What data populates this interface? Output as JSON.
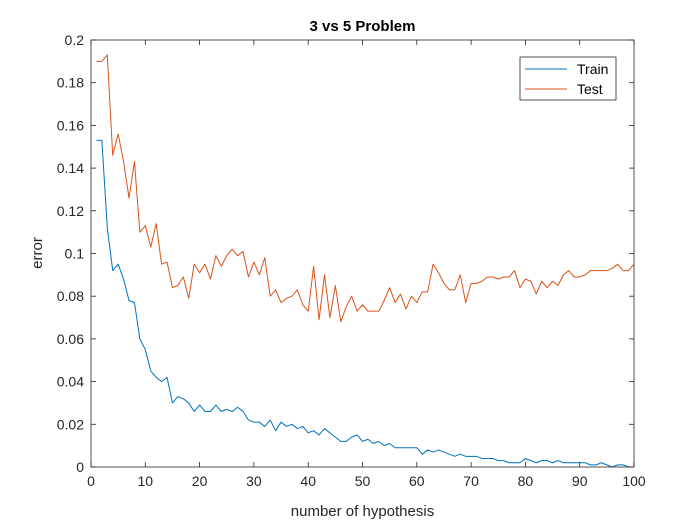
{
  "chart_data": {
    "type": "line",
    "title": "3 vs 5 Problem",
    "xlabel": "number of hypothesis",
    "ylabel": "error",
    "xlim": [
      0,
      100
    ],
    "ylim": [
      0,
      0.2
    ],
    "xticks": [
      0,
      10,
      20,
      30,
      40,
      50,
      60,
      70,
      80,
      90,
      100
    ],
    "yticks": [
      0,
      0.02,
      0.04,
      0.06,
      0.08,
      0.1,
      0.12,
      0.14,
      0.16,
      0.18,
      0.2
    ],
    "xtick_labels": [
      "0",
      "10",
      "20",
      "30",
      "40",
      "50",
      "60",
      "70",
      "80",
      "90",
      "100"
    ],
    "ytick_labels": [
      "0",
      "0.02",
      "0.04",
      "0.06",
      "0.08",
      "0.1",
      "0.12",
      "0.14",
      "0.16",
      "0.18",
      "0.2"
    ],
    "grid": false,
    "legend_position": "top-right",
    "x": [
      1,
      2,
      3,
      4,
      5,
      6,
      7,
      8,
      9,
      10,
      11,
      12,
      13,
      14,
      15,
      16,
      17,
      18,
      19,
      20,
      21,
      22,
      23,
      24,
      25,
      26,
      27,
      28,
      29,
      30,
      31,
      32,
      33,
      34,
      35,
      36,
      37,
      38,
      39,
      40,
      41,
      42,
      43,
      44,
      45,
      46,
      47,
      48,
      49,
      50,
      51,
      52,
      53,
      54,
      55,
      56,
      57,
      58,
      59,
      60,
      61,
      62,
      63,
      64,
      65,
      66,
      67,
      68,
      69,
      70,
      71,
      72,
      73,
      74,
      75,
      76,
      77,
      78,
      79,
      80,
      81,
      82,
      83,
      84,
      85,
      86,
      87,
      88,
      89,
      90,
      91,
      92,
      93,
      94,
      95,
      96,
      97,
      98,
      99,
      100
    ],
    "series": [
      {
        "name": "Train",
        "color": "#0072BD",
        "values": [
          0.153,
          0.153,
          0.112,
          0.092,
          0.095,
          0.088,
          0.078,
          0.077,
          0.06,
          0.055,
          0.045,
          0.042,
          0.04,
          0.042,
          0.03,
          0.033,
          0.032,
          0.03,
          0.026,
          0.029,
          0.026,
          0.026,
          0.029,
          0.026,
          0.027,
          0.026,
          0.028,
          0.026,
          0.022,
          0.021,
          0.021,
          0.019,
          0.022,
          0.017,
          0.021,
          0.019,
          0.02,
          0.018,
          0.019,
          0.016,
          0.017,
          0.015,
          0.018,
          0.016,
          0.014,
          0.012,
          0.012,
          0.014,
          0.015,
          0.012,
          0.013,
          0.011,
          0.012,
          0.01,
          0.011,
          0.009,
          0.009,
          0.009,
          0.009,
          0.009,
          0.006,
          0.008,
          0.007,
          0.008,
          0.007,
          0.006,
          0.005,
          0.006,
          0.005,
          0.005,
          0.005,
          0.004,
          0.004,
          0.004,
          0.003,
          0.003,
          0.002,
          0.002,
          0.002,
          0.004,
          0.003,
          0.002,
          0.003,
          0.003,
          0.002,
          0.003,
          0.002,
          0.002,
          0.002,
          0.002,
          0.002,
          0.001,
          0.001,
          0.002,
          0.001,
          0.0,
          0.001,
          0.001,
          0.0,
          0.0
        ]
      },
      {
        "name": "Test",
        "color": "#D95319",
        "values": [
          0.19,
          0.19,
          0.193,
          0.146,
          0.156,
          0.143,
          0.126,
          0.143,
          0.11,
          0.113,
          0.103,
          0.114,
          0.095,
          0.096,
          0.084,
          0.085,
          0.089,
          0.079,
          0.095,
          0.091,
          0.095,
          0.088,
          0.099,
          0.094,
          0.099,
          0.102,
          0.099,
          0.101,
          0.089,
          0.096,
          0.09,
          0.098,
          0.08,
          0.083,
          0.077,
          0.079,
          0.08,
          0.083,
          0.076,
          0.073,
          0.094,
          0.069,
          0.09,
          0.07,
          0.085,
          0.068,
          0.075,
          0.08,
          0.073,
          0.076,
          0.073,
          0.073,
          0.073,
          0.078,
          0.084,
          0.077,
          0.081,
          0.074,
          0.08,
          0.077,
          0.082,
          0.082,
          0.095,
          0.091,
          0.086,
          0.083,
          0.083,
          0.09,
          0.077,
          0.086,
          0.086,
          0.087,
          0.089,
          0.089,
          0.088,
          0.089,
          0.089,
          0.092,
          0.084,
          0.088,
          0.087,
          0.081,
          0.087,
          0.084,
          0.087,
          0.085,
          0.09,
          0.092,
          0.089,
          0.089,
          0.09,
          0.092,
          0.092,
          0.092,
          0.092,
          0.093,
          0.095,
          0.092,
          0.092,
          0.095
        ]
      }
    ]
  }
}
